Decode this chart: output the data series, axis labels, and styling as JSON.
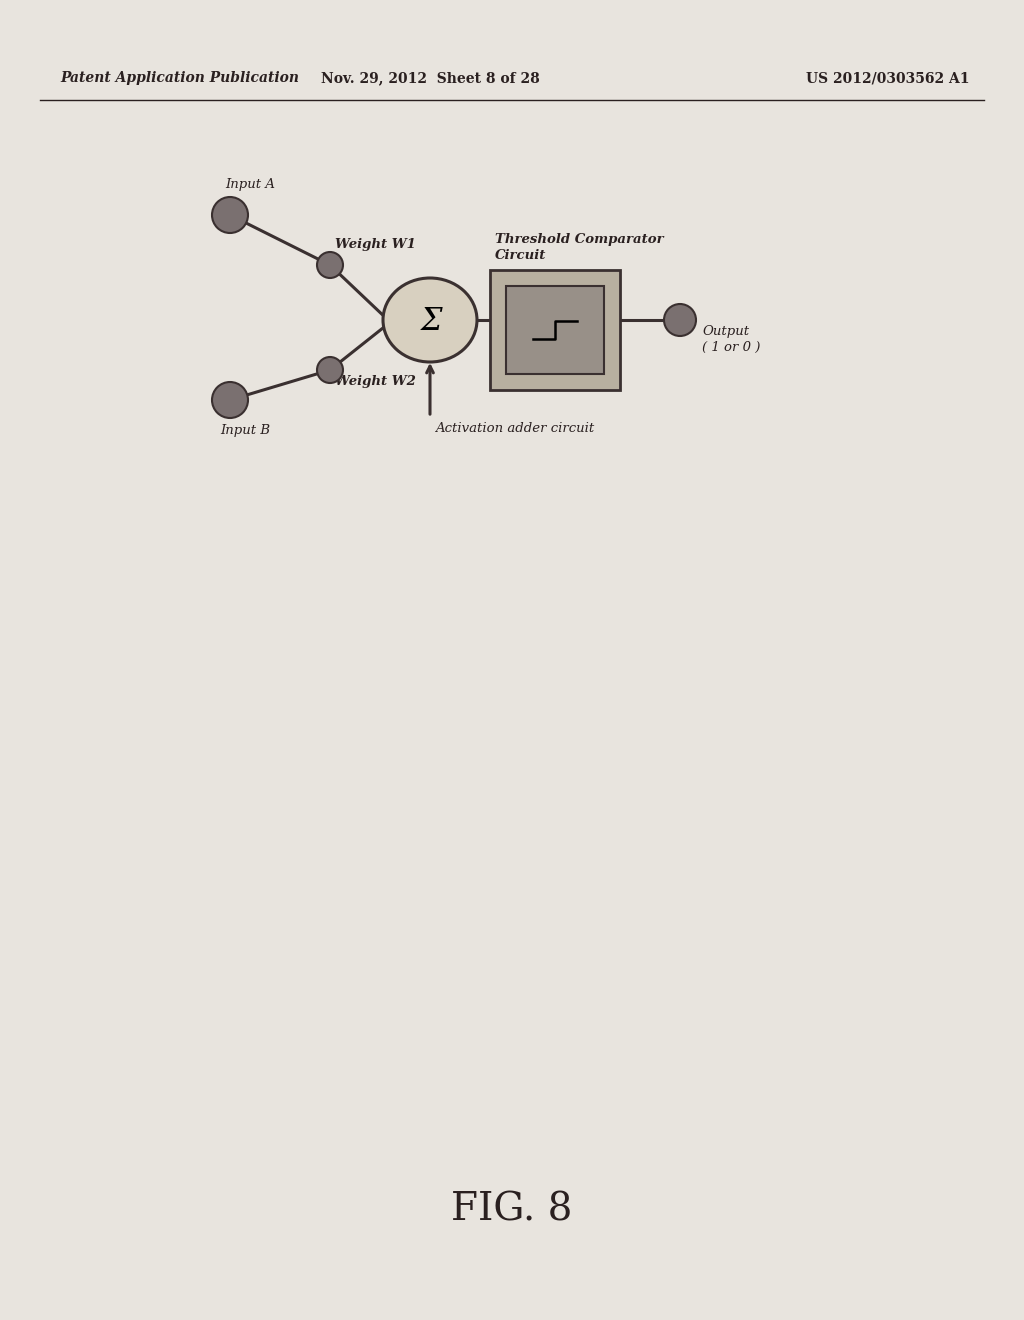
{
  "bg_color": "#e8e4de",
  "header_left": "Patent Application Publication",
  "header_mid": "Nov. 29, 2012  Sheet 8 of 28",
  "header_right": "US 2012/0303562 A1",
  "fig_label": "FIG. 8",
  "node_color": "#7a7070",
  "node_edge_color": "#3a3030",
  "line_color": "#3a3030",
  "label_input_a": "Input A",
  "label_input_b": "Input B",
  "label_weight_w1": "Weight W1",
  "label_weight_w2": "Weight W2",
  "label_threshold": "Threshold Comparator\nCircuit",
  "label_activation": "Activation adder circuit",
  "label_output": "Output\n( 1 or 0 )",
  "sigma_circle_color": "#d8d0c0",
  "box_outer_color": "#b8b0a0",
  "box_inner_color": "#989088",
  "text_color": "#2a2020"
}
